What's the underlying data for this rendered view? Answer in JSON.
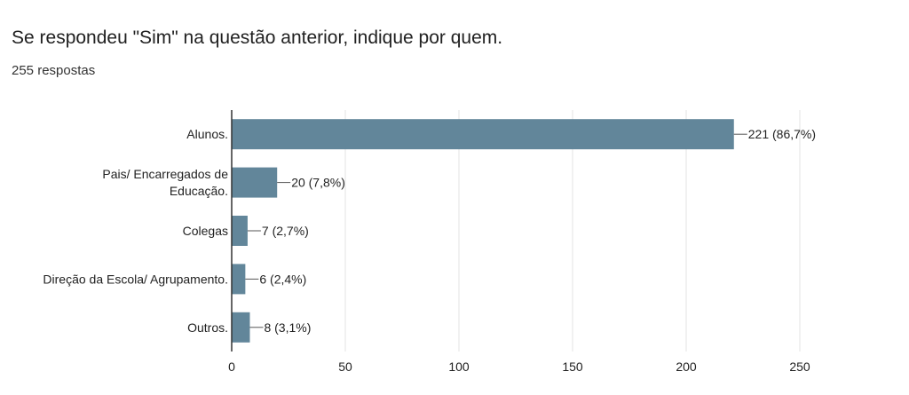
{
  "question": {
    "title": "Se respondeu \"Sim\" na questão anterior, indique por quem.",
    "response_count": "255 respostas"
  },
  "colors": {
    "bar": "#62869a",
    "grid": "#e3e3e3",
    "axis": "#333333",
    "text": "#222222"
  },
  "chart_data": {
    "type": "bar",
    "orientation": "horizontal",
    "title": "",
    "xlabel": "",
    "ylabel": "",
    "categories": [
      [
        "Alunos."
      ],
      [
        "Pais/ Encarregados de",
        "Educação."
      ],
      [
        "Colegas"
      ],
      [
        "Direção da Escola/ Agrupamento."
      ],
      [
        "Outros."
      ]
    ],
    "values": [
      221,
      20,
      7,
      6,
      8
    ],
    "data_labels": [
      "221 (86,7%)",
      "20 (7,8%)",
      "7 (2,7%)",
      "6 (2,4%)",
      "8 (3,1%)"
    ],
    "xlim": [
      0,
      250
    ],
    "xticks": [
      0,
      50,
      100,
      150,
      200,
      250
    ],
    "grid": true,
    "legend": "none"
  }
}
